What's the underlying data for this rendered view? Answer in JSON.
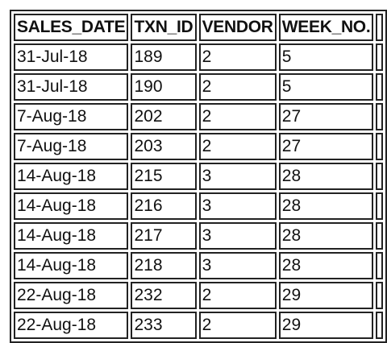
{
  "table": {
    "headers": [
      "SALES_DATE",
      "TXN_ID",
      "VENDOR",
      "WEEK_NO."
    ],
    "rows": [
      [
        "31-Jul-18",
        "189",
        "2",
        "5"
      ],
      [
        "31-Jul-18",
        "190",
        "2",
        "5"
      ],
      [
        "7-Aug-18",
        "202",
        "2",
        "27"
      ],
      [
        "7-Aug-18",
        "203",
        "2",
        "27"
      ],
      [
        "14-Aug-18",
        "215",
        "3",
        "28"
      ],
      [
        "14-Aug-18",
        "216",
        "3",
        "28"
      ],
      [
        "14-Aug-18",
        "217",
        "3",
        "28"
      ],
      [
        "14-Aug-18",
        "218",
        "3",
        "28"
      ],
      [
        "22-Aug-18",
        "232",
        "2",
        "29"
      ],
      [
        "22-Aug-18",
        "233",
        "2",
        "29"
      ]
    ]
  }
}
